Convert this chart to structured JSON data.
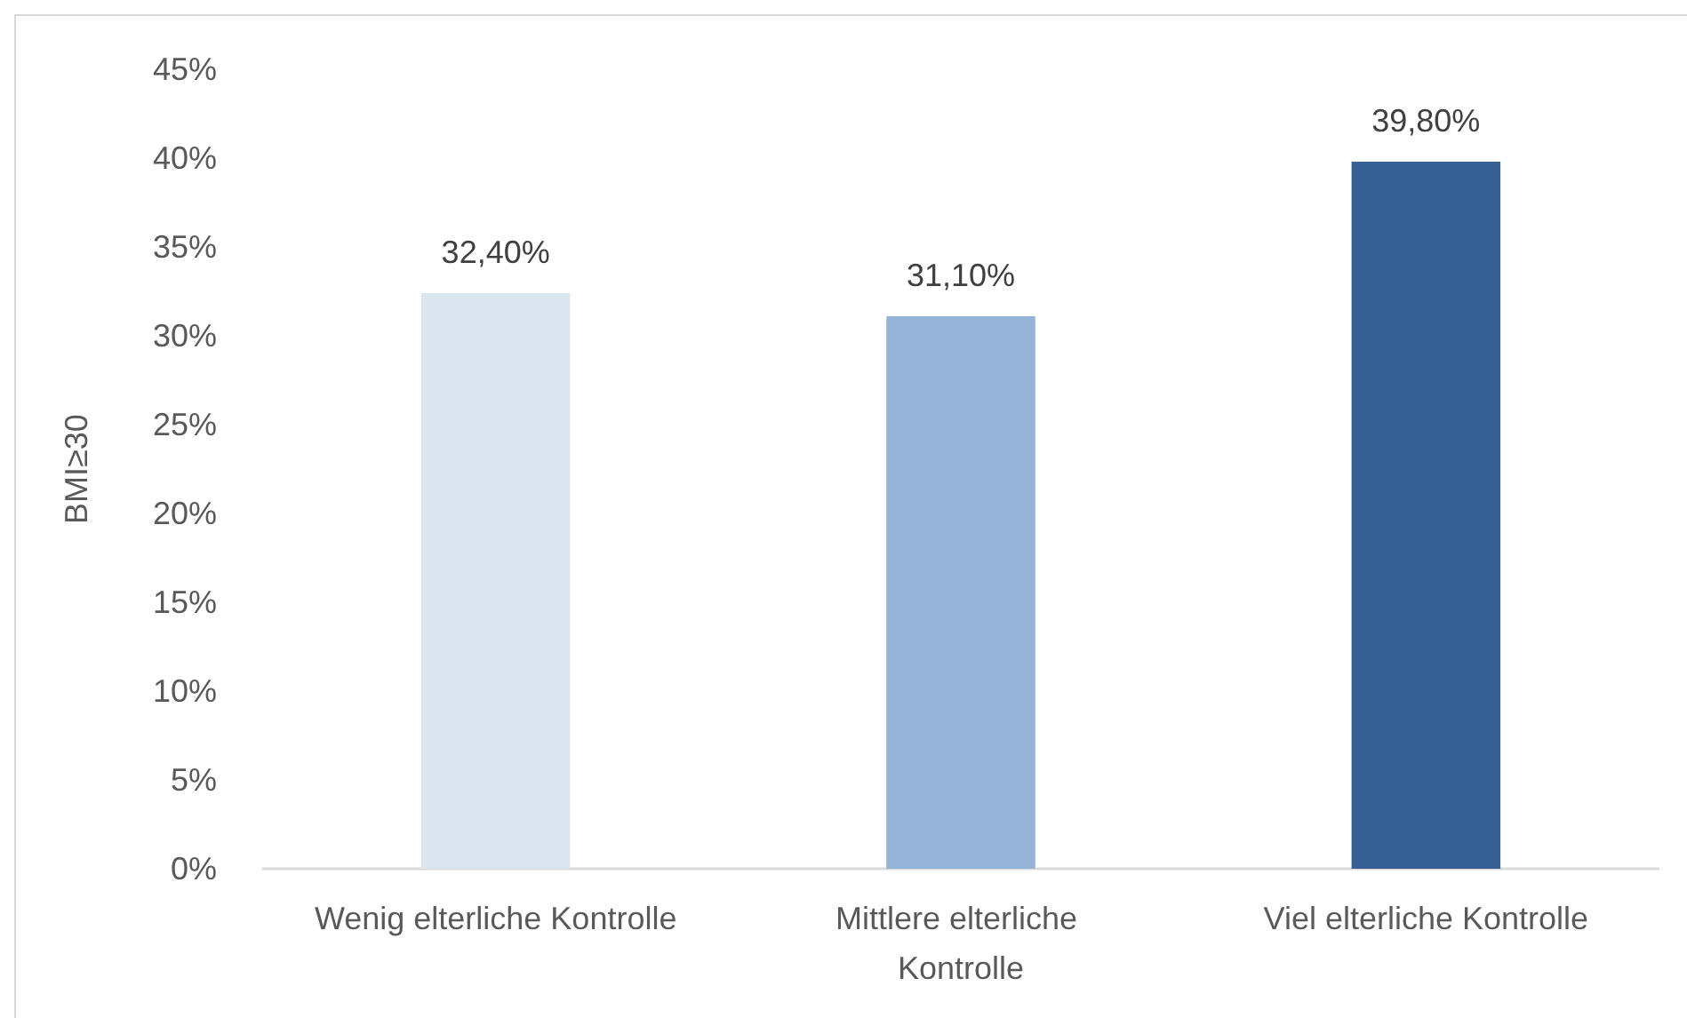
{
  "chart_data": {
    "type": "bar",
    "ylabel": "BMI≥30",
    "categories": [
      "Wenig elterliche Kontrolle",
      "Mittlere elterliche Kontrolle",
      "Viel elterliche Kontrolle"
    ],
    "values": [
      32.4,
      31.1,
      39.8
    ],
    "colors": [
      "#dce6f1",
      "#95b3d7",
      "#366092"
    ],
    "value_labels": [
      "32,40%",
      "31,10%",
      "39,80%"
    ],
    "ylim": [
      0,
      45
    ],
    "yticks": [
      {
        "value": 0,
        "label": "0%"
      },
      {
        "value": 5,
        "label": "5%"
      },
      {
        "value": 10,
        "label": "10%"
      },
      {
        "value": 15,
        "label": "15%"
      },
      {
        "value": 20,
        "label": "20%"
      },
      {
        "value": 25,
        "label": "25%"
      },
      {
        "value": 30,
        "label": "30%"
      },
      {
        "value": 35,
        "label": "35%"
      },
      {
        "value": 40,
        "label": "40%"
      },
      {
        "value": 45,
        "label": "45%"
      }
    ]
  }
}
